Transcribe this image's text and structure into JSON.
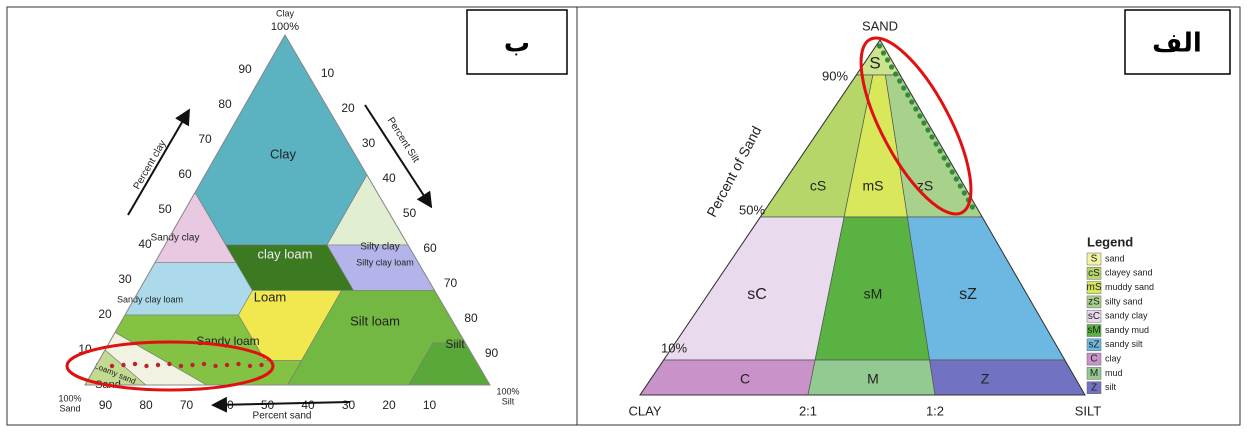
{
  "left_panel": {
    "badge": "ب",
    "top_corner": {
      "name": "Clay",
      "percent": "100%"
    },
    "left_corner": {
      "name": "Sand",
      "percent": "100%"
    },
    "right_corner": {
      "name": "Silt",
      "percent": "100%"
    },
    "axis_titles": {
      "clay": "Percent clay",
      "silt": "Percent Silt",
      "sand": "Percent sand"
    },
    "left_ticks": [
      90,
      80,
      70,
      60,
      50,
      40,
      30,
      20,
      10
    ],
    "right_ticks": [
      10,
      20,
      30,
      40,
      50,
      60,
      70,
      80,
      90
    ],
    "bottom_ticks": [
      90,
      80,
      70,
      60,
      50,
      40,
      30,
      20,
      10
    ],
    "regions": [
      {
        "label": "Clay",
        "color": "#5bb3c2"
      },
      {
        "label": "Sandy clay",
        "color": "#e9c9e2"
      },
      {
        "label": "Silty clay",
        "color": "#e2eed2"
      },
      {
        "label": "clay loam",
        "color": "#3c7a22"
      },
      {
        "label": "Silty clay loam",
        "color": "#b4b4ea"
      },
      {
        "label": "Sandy clay loam",
        "color": "#acdaea"
      },
      {
        "label": "Loam",
        "color": "#f0e84e"
      },
      {
        "label": "Silt loam",
        "color": "#72b842"
      },
      {
        "label": "Siilt",
        "color": "#5aa83a"
      },
      {
        "label": "Sandy loam",
        "color": "#84c244"
      },
      {
        "label": "Loamy sand",
        "color": "#f2f2e2"
      },
      {
        "label": "Sand",
        "color": "#c2da92"
      }
    ]
  },
  "right_panel": {
    "badge": "الف",
    "apex_label": "SAND",
    "axis_title": "Percent of Sand",
    "level_labels": [
      "90%",
      "50%",
      "10%"
    ],
    "base_labels": [
      "CLAY",
      "2:1",
      "1:2",
      "SILT"
    ],
    "regions": [
      {
        "label": "S",
        "color": "#cde48e"
      },
      {
        "label": "cS",
        "color": "#b6d66a"
      },
      {
        "label": "mS",
        "color": "#d8e85a"
      },
      {
        "label": "zS",
        "color": "#a8d28c"
      },
      {
        "label": "sC",
        "color": "#eadaee"
      },
      {
        "label": "sM",
        "color": "#5ab242"
      },
      {
        "label": "sZ",
        "color": "#6cb8e2"
      },
      {
        "label": "C",
        "color": "#c992c9"
      },
      {
        "label": "M",
        "color": "#92ca92"
      },
      {
        "label": "Z",
        "color": "#7272c2"
      }
    ],
    "legend": {
      "title": "Legend",
      "items": [
        {
          "code": "S",
          "text": "sand",
          "color": "#f2f2a0"
        },
        {
          "code": "cS",
          "text": "clayey sand",
          "color": "#b6d66a"
        },
        {
          "code": "mS",
          "text": "muddy sand",
          "color": "#d8e85a"
        },
        {
          "code": "zS",
          "text": "silty sand",
          "color": "#a8d28c"
        },
        {
          "code": "sC",
          "text": "sandy clay",
          "color": "#eadaee"
        },
        {
          "code": "sM",
          "text": "sandy mud",
          "color": "#5ab242"
        },
        {
          "code": "sZ",
          "text": "sandy silt",
          "color": "#6cb8e2"
        },
        {
          "code": "C",
          "text": "clay",
          "color": "#c992c9"
        },
        {
          "code": "M",
          "text": "mud",
          "color": "#92ca92"
        },
        {
          "code": "Z",
          "text": "silt",
          "color": "#7272c2"
        }
      ]
    }
  }
}
